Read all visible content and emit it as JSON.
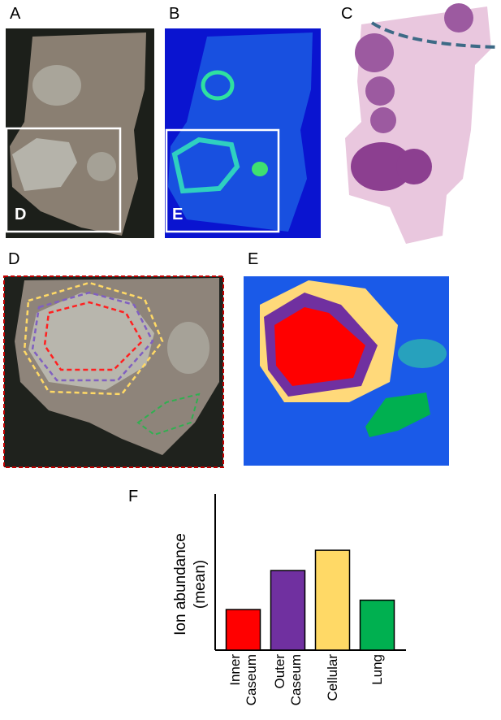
{
  "panels": {
    "a": "A",
    "b": "B",
    "c": "C",
    "d": "D",
    "e": "E",
    "f": "F",
    "inset_d": "D",
    "inset_e": "E"
  },
  "chart_data": {
    "type": "bar",
    "ylabel": "Ion abundance (mean)",
    "categories": [
      "Inner Caseum",
      "Outer Caseum",
      "Cellular",
      "Lung"
    ],
    "values": [
      0.26,
      0.51,
      0.64,
      0.32
    ],
    "colors": [
      "#ff0000",
      "#7030a0",
      "#ffd966",
      "#00b050"
    ],
    "ylim": [
      0,
      1
    ]
  }
}
